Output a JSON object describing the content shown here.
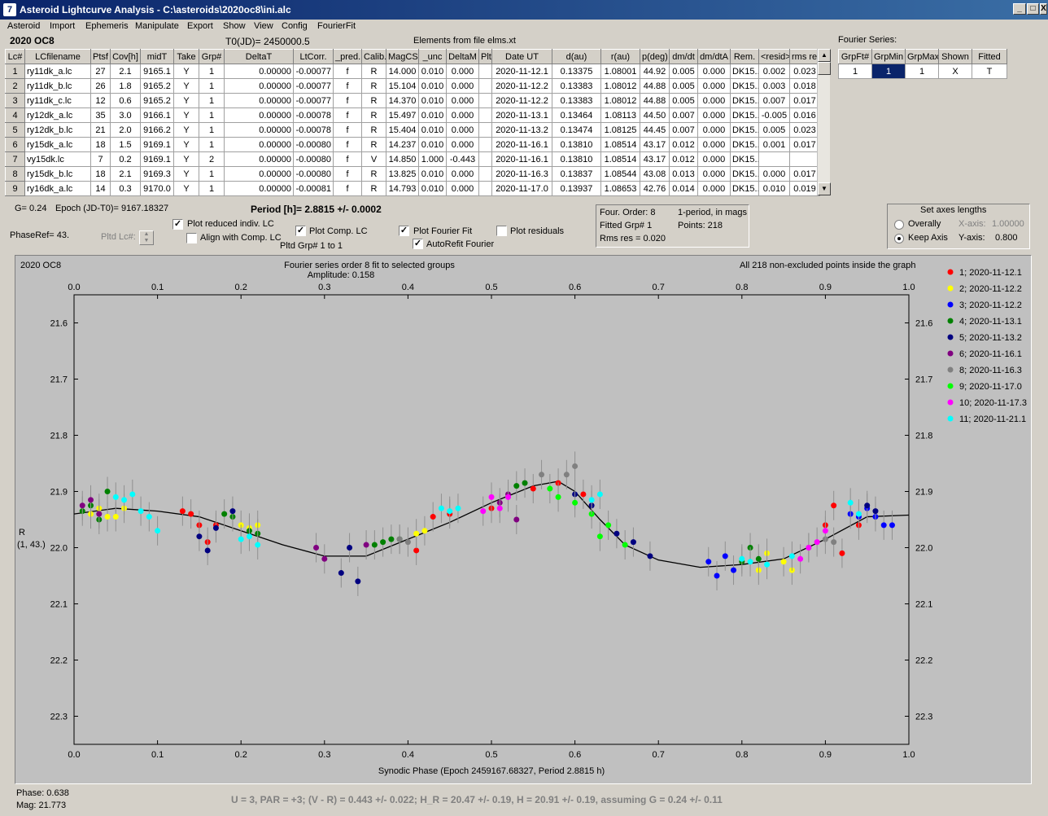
{
  "window": {
    "title": "Asteroid Lightcurve Analysis - C:\\asteroids\\2020oc8\\ini.alc",
    "icon_glyph": "7"
  },
  "window_buttons": {
    "minimize": "_",
    "maximize": "□",
    "close": "X"
  },
  "menu": [
    "Asteroid",
    "Import",
    "Ephemeris",
    "Manipulate",
    "Export",
    "Show",
    "View",
    "Config",
    "FourierFit"
  ],
  "header": {
    "object_name": "2020 OC8",
    "t0": "T0(JD)= 2450000.5",
    "elements": "Elements from file elms.xt",
    "fourier_series_label": "Fourier Series:"
  },
  "lc_table": {
    "columns": [
      "Lc#",
      "LCfilename",
      "Ptsf",
      "Cov[h]",
      "midT",
      "Take",
      "Grp#",
      "DeltaT",
      "LtCorr.",
      "_pred.",
      "Calib.",
      "MagCS",
      "_unc",
      "DeltaM",
      "Plt",
      "Date UT",
      "d(au)",
      "r(au)",
      "p(deg)",
      "dm/dt",
      "dm/dtA",
      "Rem.",
      "<resid>",
      "rms res"
    ],
    "rows": [
      [
        "1",
        "ry11dk_a.lc",
        "27",
        "2.1",
        "9165.1",
        "Y",
        "1",
        "0.00000",
        "-0.00077",
        "f",
        "R",
        "14.000",
        "0.010",
        "0.000",
        "",
        "2020-11-12.1",
        "0.13375",
        "1.08001",
        "44.92",
        "0.005",
        "0.000",
        "DK15..",
        "0.002",
        "0.023"
      ],
      [
        "2",
        "ry11dk_b.lc",
        "26",
        "1.8",
        "9165.2",
        "Y",
        "1",
        "0.00000",
        "-0.00077",
        "f",
        "R",
        "15.104",
        "0.010",
        "0.000",
        "",
        "2020-11-12.2",
        "0.13383",
        "1.08012",
        "44.88",
        "0.005",
        "0.000",
        "DK15..",
        "0.003",
        "0.018"
      ],
      [
        "3",
        "ry11dk_c.lc",
        "12",
        "0.6",
        "9165.2",
        "Y",
        "1",
        "0.00000",
        "-0.00077",
        "f",
        "R",
        "14.370",
        "0.010",
        "0.000",
        "",
        "2020-11-12.2",
        "0.13383",
        "1.08012",
        "44.88",
        "0.005",
        "0.000",
        "DK15..",
        "0.007",
        "0.017"
      ],
      [
        "4",
        "ry12dk_a.lc",
        "35",
        "3.0",
        "9166.1",
        "Y",
        "1",
        "0.00000",
        "-0.00078",
        "f",
        "R",
        "15.497",
        "0.010",
        "0.000",
        "",
        "2020-11-13.1",
        "0.13464",
        "1.08113",
        "44.50",
        "0.007",
        "0.000",
        "DK15..",
        "-0.005",
        "0.016"
      ],
      [
        "5",
        "ry12dk_b.lc",
        "21",
        "2.0",
        "9166.2",
        "Y",
        "1",
        "0.00000",
        "-0.00078",
        "f",
        "R",
        "15.404",
        "0.010",
        "0.000",
        "",
        "2020-11-13.2",
        "0.13474",
        "1.08125",
        "44.45",
        "0.007",
        "0.000",
        "DK15..",
        "0.005",
        "0.023"
      ],
      [
        "6",
        "ry15dk_a.lc",
        "18",
        "1.5",
        "9169.1",
        "Y",
        "1",
        "0.00000",
        "-0.00080",
        "f",
        "R",
        "14.237",
        "0.010",
        "0.000",
        "",
        "2020-11-16.1",
        "0.13810",
        "1.08514",
        "43.17",
        "0.012",
        "0.000",
        "DK15..",
        "0.001",
        "0.017"
      ],
      [
        "7",
        "vy15dk.lc",
        "7",
        "0.2",
        "9169.1",
        "Y",
        "2",
        "0.00000",
        "-0.00080",
        "f",
        "V",
        "14.850",
        "1.000",
        "-0.443",
        "",
        "2020-11-16.1",
        "0.13810",
        "1.08514",
        "43.17",
        "0.012",
        "0.000",
        "DK15..",
        "",
        ""
      ],
      [
        "8",
        "ry15dk_b.lc",
        "18",
        "2.1",
        "9169.3",
        "Y",
        "1",
        "0.00000",
        "-0.00080",
        "f",
        "R",
        "13.825",
        "0.010",
        "0.000",
        "",
        "2020-11-16.3",
        "0.13837",
        "1.08544",
        "43.08",
        "0.013",
        "0.000",
        "DK15..",
        "0.000",
        "0.017"
      ],
      [
        "9",
        "ry16dk_a.lc",
        "14",
        "0.3",
        "9170.0",
        "Y",
        "1",
        "0.00000",
        "-0.00081",
        "f",
        "R",
        "14.793",
        "0.010",
        "0.000",
        "",
        "2020-11-17.0",
        "0.13937",
        "1.08653",
        "42.76",
        "0.014",
        "0.000",
        "DK15..",
        "0.010",
        "0.019"
      ]
    ]
  },
  "fourier_table": {
    "columns": [
      "GrpFt#",
      "GrpMin",
      "GrpMax",
      "Shown",
      "Fitted"
    ],
    "row": [
      "1",
      "1",
      "1",
      "X",
      "T"
    ]
  },
  "controls": {
    "g_value": "G= 0.24",
    "epoch": "Epoch (JD-T0)= 9167.18327",
    "period": "Period [h]= 2.8815 +/- 0.0002",
    "phaseref": "PhaseRef= 43.",
    "pltd_lc": "Pltd Lc#:",
    "plot_reduced": "Plot reduced indiv. LC",
    "align_comp": "Align with Comp. LC",
    "plot_comp": "Plot Comp. LC",
    "pltd_grp": "Pltd Grp#  1   to   1",
    "plot_fourier": "Plot Fourier Fit",
    "autorefit": "AutoRefit Fourier",
    "plot_residuals": "Plot residuals",
    "check_mark": "✓"
  },
  "fit_info": {
    "order": "Four. Order:  8",
    "mode": "1-period, in mags",
    "fitted": "Fitted Grp# 1",
    "points": "Points: 218",
    "rms": "Rms res     = 0.020"
  },
  "axes_box": {
    "title": "Set axes lengths",
    "overally": "Overally",
    "keep_axis": "Keep Axis",
    "xaxis_label": "X-axis:",
    "xaxis_value": "1.00000",
    "yaxis_label": "Y-axis:",
    "yaxis_value": "0.800"
  },
  "chart_data": {
    "type": "scatter",
    "object_label": "2020 OC8",
    "title": "Fourier series order 8 fit to selected groups",
    "subtitle": "Amplitude: 0.158",
    "note": "All 218 non-excluded points inside the graph",
    "xlabel": "Synodic Phase (Epoch 2459167.68327, Period 2.8815 h)",
    "ylabel": "R",
    "ylabel2": "(1, 43.)",
    "xlim": [
      0.0,
      1.0
    ],
    "ylim": [
      21.55,
      22.35
    ],
    "y_inverted": true,
    "x_ticks": [
      "0.0",
      "0.1",
      "0.2",
      "0.3",
      "0.4",
      "0.5",
      "0.6",
      "0.7",
      "0.8",
      "0.9",
      "1.0"
    ],
    "y_ticks": [
      "21.6",
      "21.7",
      "21.8",
      "21.9",
      "22.0",
      "22.1",
      "22.2",
      "22.3"
    ],
    "errorbar_color": "#909090",
    "curve_color": "#000000",
    "fit_curve": [
      [
        0.0,
        21.94
      ],
      [
        0.05,
        21.93
      ],
      [
        0.1,
        21.935
      ],
      [
        0.15,
        21.945
      ],
      [
        0.2,
        21.97
      ],
      [
        0.25,
        21.995
      ],
      [
        0.3,
        22.015
      ],
      [
        0.35,
        22.015
      ],
      [
        0.4,
        21.985
      ],
      [
        0.45,
        21.955
      ],
      [
        0.5,
        21.92
      ],
      [
        0.55,
        21.89
      ],
      [
        0.58,
        21.882
      ],
      [
        0.6,
        21.9
      ],
      [
        0.63,
        21.95
      ],
      [
        0.66,
        21.995
      ],
      [
        0.7,
        22.022
      ],
      [
        0.75,
        22.035
      ],
      [
        0.8,
        22.03
      ],
      [
        0.85,
        22.02
      ],
      [
        0.9,
        21.985
      ],
      [
        0.95,
        21.945
      ],
      [
        1.0,
        21.942
      ]
    ],
    "series": [
      {
        "name": "1; 2020-11-12.1",
        "color": "#ff0000",
        "points": [
          [
            0.5,
            21.93
          ],
          [
            0.55,
            21.895
          ],
          [
            0.58,
            21.885
          ],
          [
            0.61,
            21.905
          ],
          [
            0.13,
            21.935
          ],
          [
            0.14,
            21.94
          ],
          [
            0.15,
            21.96
          ],
          [
            0.16,
            21.99
          ],
          [
            0.17,
            21.96
          ],
          [
            0.43,
            21.945
          ],
          [
            0.45,
            21.94
          ],
          [
            0.41,
            22.005
          ],
          [
            0.9,
            21.96
          ],
          [
            0.91,
            21.925
          ],
          [
            0.92,
            22.01
          ],
          [
            0.94,
            21.96
          ]
        ]
      },
      {
        "name": "2; 2020-11-12.2",
        "color": "#ffff00",
        "points": [
          [
            0.05,
            21.945
          ],
          [
            0.06,
            21.93
          ],
          [
            0.03,
            21.93
          ],
          [
            0.04,
            21.945
          ],
          [
            0.02,
            21.94
          ],
          [
            0.2,
            21.96
          ],
          [
            0.21,
            21.965
          ],
          [
            0.22,
            21.96
          ],
          [
            0.86,
            22.04
          ],
          [
            0.82,
            22.04
          ],
          [
            0.83,
            22.01
          ],
          [
            0.85,
            22.025
          ],
          [
            0.41,
            21.975
          ],
          [
            0.42,
            21.97
          ]
        ]
      },
      {
        "name": "3; 2020-11-12.2",
        "color": "#0000ff",
        "points": [
          [
            0.76,
            22.025
          ],
          [
            0.77,
            22.05
          ],
          [
            0.78,
            22.015
          ],
          [
            0.79,
            22.04
          ],
          [
            0.95,
            21.93
          ],
          [
            0.96,
            21.945
          ],
          [
            0.97,
            21.96
          ],
          [
            0.98,
            21.96
          ],
          [
            0.93,
            21.94
          ],
          [
            0.94,
            21.945
          ]
        ]
      },
      {
        "name": "4; 2020-11-13.1",
        "color": "#008000",
        "points": [
          [
            0.01,
            21.935
          ],
          [
            0.02,
            21.925
          ],
          [
            0.04,
            21.9
          ],
          [
            0.03,
            21.95
          ],
          [
            0.18,
            21.94
          ],
          [
            0.19,
            21.945
          ],
          [
            0.21,
            21.97
          ],
          [
            0.22,
            21.975
          ],
          [
            0.36,
            21.995
          ],
          [
            0.37,
            21.99
          ],
          [
            0.38,
            21.985
          ],
          [
            0.39,
            21.985
          ],
          [
            0.53,
            21.89
          ],
          [
            0.54,
            21.885
          ],
          [
            0.82,
            22.02
          ],
          [
            0.81,
            22.0
          ],
          [
            0.8,
            22.025
          ]
        ]
      },
      {
        "name": "5; 2020-11-13.2",
        "color": "#000080",
        "points": [
          [
            0.15,
            21.98
          ],
          [
            0.16,
            22.005
          ],
          [
            0.17,
            21.965
          ],
          [
            0.19,
            21.935
          ],
          [
            0.32,
            22.045
          ],
          [
            0.34,
            22.06
          ],
          [
            0.33,
            22.0
          ],
          [
            0.6,
            21.905
          ],
          [
            0.62,
            21.925
          ],
          [
            0.65,
            21.975
          ],
          [
            0.67,
            21.99
          ],
          [
            0.69,
            22.015
          ],
          [
            0.95,
            21.925
          ],
          [
            0.96,
            21.935
          ]
        ]
      },
      {
        "name": "6; 2020-11-16.1",
        "color": "#800080",
        "points": [
          [
            0.01,
            21.925
          ],
          [
            0.02,
            21.915
          ],
          [
            0.03,
            21.94
          ],
          [
            0.29,
            22.0
          ],
          [
            0.3,
            22.02
          ],
          [
            0.35,
            21.995
          ],
          [
            0.51,
            21.92
          ],
          [
            0.52,
            21.905
          ],
          [
            0.53,
            21.95
          ]
        ]
      },
      {
        "name": "8; 2020-11-16.3",
        "color": "#808080",
        "points": [
          [
            0.59,
            21.87
          ],
          [
            0.6,
            21.855
          ],
          [
            0.4,
            21.99
          ],
          [
            0.39,
            21.985
          ],
          [
            0.56,
            21.87
          ],
          [
            0.88,
            22.0
          ],
          [
            0.9,
            21.985
          ],
          [
            0.91,
            21.99
          ]
        ]
      },
      {
        "name": "9; 2020-11-17.0",
        "color": "#00ff00",
        "points": [
          [
            0.57,
            21.895
          ],
          [
            0.58,
            21.91
          ],
          [
            0.6,
            21.92
          ],
          [
            0.63,
            21.98
          ],
          [
            0.66,
            21.995
          ],
          [
            0.64,
            21.96
          ],
          [
            0.62,
            21.94
          ]
        ]
      },
      {
        "name": "10; 2020-11-17.3",
        "color": "#ff00ff",
        "points": [
          [
            0.49,
            21.935
          ],
          [
            0.5,
            21.91
          ],
          [
            0.51,
            21.93
          ],
          [
            0.52,
            21.91
          ],
          [
            0.87,
            22.02
          ],
          [
            0.88,
            22.0
          ],
          [
            0.9,
            21.97
          ],
          [
            0.89,
            21.99
          ]
        ]
      },
      {
        "name": "11; 2020-11-21.1",
        "color": "#00ffff",
        "points": [
          [
            0.05,
            21.91
          ],
          [
            0.06,
            21.915
          ],
          [
            0.07,
            21.905
          ],
          [
            0.08,
            21.935
          ],
          [
            0.09,
            21.945
          ],
          [
            0.1,
            21.97
          ],
          [
            0.2,
            21.985
          ],
          [
            0.21,
            21.98
          ],
          [
            0.22,
            21.995
          ],
          [
            0.44,
            21.93
          ],
          [
            0.45,
            21.935
          ],
          [
            0.46,
            21.93
          ],
          [
            0.62,
            21.915
          ],
          [
            0.63,
            21.905
          ],
          [
            0.8,
            22.02
          ],
          [
            0.81,
            22.025
          ],
          [
            0.83,
            22.03
          ],
          [
            0.86,
            22.015
          ],
          [
            0.93,
            21.92
          ],
          [
            0.94,
            21.94
          ]
        ]
      }
    ]
  },
  "status": {
    "phase": "Phase:  0.638",
    "mag": "Mag:    21.773",
    "summary": "U = 3, PAR = +3; (V - R) = 0.443 +/- 0.022; H_R = 20.47 +/- 0.19, H = 20.91 +/- 0.19, assuming G = 0.24 +/- 0.11"
  }
}
